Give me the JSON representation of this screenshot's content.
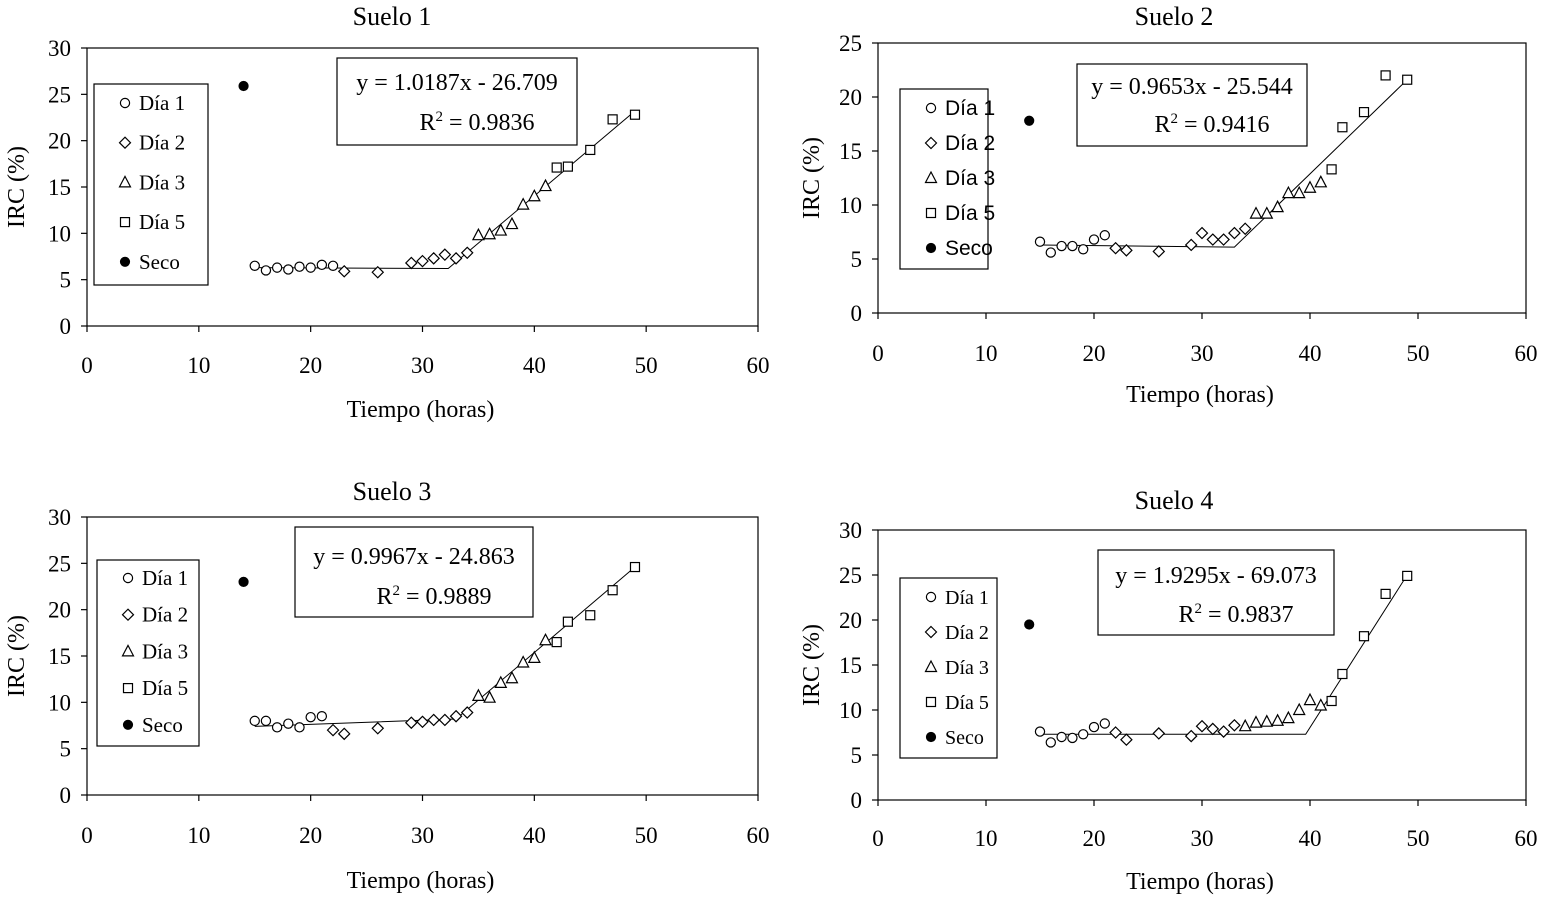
{
  "chart_data": [
    {
      "type": "scatter",
      "title": "Suelo 1",
      "xlabel": "Tiempo (horas)",
      "ylabel": "IRC (%)",
      "xlim": [
        0,
        60
      ],
      "ylim": [
        0,
        30
      ],
      "xticks": [
        "0",
        "10",
        "20",
        "30",
        "40",
        "50",
        "60"
      ],
      "yticks": [
        "0",
        "5",
        "10",
        "15",
        "20",
        "25",
        "30"
      ],
      "equation": "y = 1.0187x - 26.709",
      "r2_label": "R",
      "r2_sup": "2",
      "r2_value": " = 0.9836",
      "legend": [
        "Día 1",
        "Día 2",
        "Día 3",
        "Día 5",
        "Seco"
      ],
      "fit_line": [
        [
          15,
          6.3
        ],
        [
          32.3,
          6.2
        ],
        [
          48.8,
          23.0
        ]
      ],
      "series": [
        {
          "name": "Día 1",
          "marker": "circle",
          "points": [
            [
              15,
              6.5
            ],
            [
              16,
              6.0
            ],
            [
              17,
              6.3
            ],
            [
              18,
              6.1
            ],
            [
              19,
              6.4
            ],
            [
              20,
              6.3
            ],
            [
              21,
              6.6
            ],
            [
              22,
              6.5
            ]
          ]
        },
        {
          "name": "Día 2",
          "marker": "diamond",
          "points": [
            [
              23,
              5.9
            ],
            [
              26,
              5.8
            ],
            [
              29,
              6.8
            ],
            [
              30,
              7.0
            ],
            [
              31,
              7.3
            ],
            [
              32,
              7.7
            ],
            [
              33,
              7.3
            ],
            [
              34,
              7.9
            ]
          ]
        },
        {
          "name": "Día 3",
          "marker": "triangle",
          "points": [
            [
              35,
              9.8
            ],
            [
              36,
              9.9
            ],
            [
              37,
              10.3
            ],
            [
              38,
              11.0
            ],
            [
              39,
              13.1
            ],
            [
              40,
              14.0
            ],
            [
              41,
              15.1
            ]
          ]
        },
        {
          "name": "Día 5",
          "marker": "square",
          "points": [
            [
              42,
              17.1
            ],
            [
              43,
              17.2
            ],
            [
              45,
              19.0
            ],
            [
              47,
              22.3
            ],
            [
              49,
              22.8
            ]
          ]
        },
        {
          "name": "Seco",
          "marker": "dot",
          "points": [
            [
              14,
              25.9
            ]
          ]
        }
      ]
    },
    {
      "type": "scatter",
      "title": "Suelo 2",
      "xlabel": "Tiempo (horas)",
      "ylabel": "IRC (%)",
      "xlim": [
        0,
        60
      ],
      "ylim": [
        0,
        25
      ],
      "xticks": [
        "0",
        "10",
        "20",
        "30",
        "40",
        "50",
        "60"
      ],
      "yticks": [
        "0",
        "5",
        "10",
        "15",
        "20",
        "25"
      ],
      "equation": "y = 0.9653x - 25.544",
      "r2_label": "R",
      "r2_sup": "2",
      "r2_value": " = 0.9416",
      "legend": [
        "Día 1",
        "Día 2",
        "Día 3",
        "Día 5",
        "Seco"
      ],
      "fit_line": [
        [
          15,
          6.3
        ],
        [
          33,
          6.1
        ],
        [
          49,
          21.6
        ]
      ],
      "series": [
        {
          "name": "Día 1",
          "marker": "circle",
          "points": [
            [
              15,
              6.6
            ],
            [
              16,
              5.6
            ],
            [
              17,
              6.2
            ],
            [
              18,
              6.2
            ],
            [
              19,
              5.9
            ],
            [
              20,
              6.8
            ],
            [
              21,
              7.2
            ]
          ]
        },
        {
          "name": "Día 2",
          "marker": "diamond",
          "points": [
            [
              22,
              6.0
            ],
            [
              23,
              5.8
            ],
            [
              26,
              5.7
            ],
            [
              29,
              6.3
            ],
            [
              30,
              7.4
            ],
            [
              31,
              6.8
            ],
            [
              32,
              6.8
            ],
            [
              33,
              7.4
            ],
            [
              34,
              7.8
            ]
          ]
        },
        {
          "name": "Día 3",
          "marker": "triangle",
          "points": [
            [
              35,
              9.2
            ],
            [
              36,
              9.2
            ],
            [
              37,
              9.8
            ],
            [
              38,
              11.1
            ],
            [
              39,
              11.1
            ],
            [
              40,
              11.6
            ],
            [
              41,
              12.1
            ]
          ]
        },
        {
          "name": "Día 5",
          "marker": "square",
          "points": [
            [
              42,
              13.3
            ],
            [
              43,
              17.2
            ],
            [
              45,
              18.6
            ],
            [
              47,
              22.0
            ],
            [
              49,
              21.6
            ]
          ]
        },
        {
          "name": "Seco",
          "marker": "dot",
          "points": [
            [
              14,
              17.8
            ]
          ]
        }
      ]
    },
    {
      "type": "scatter",
      "title": "Suelo 3",
      "xlabel": "Tiempo (horas)",
      "ylabel": "IRC (%)",
      "xlim": [
        0,
        60
      ],
      "ylim": [
        0,
        30
      ],
      "xticks": [
        "0",
        "10",
        "20",
        "30",
        "40",
        "50",
        "60"
      ],
      "yticks": [
        "0",
        "5",
        "10",
        "15",
        "20",
        "25",
        "30"
      ],
      "equation": "y = 0.9967x - 24.863",
      "r2_label": "R",
      "r2_sup": "2",
      "r2_value": " = 0.9889",
      "legend": [
        "Día 1",
        "Día 2",
        "Día 3",
        "Día 5",
        "Seco"
      ],
      "fit_line": [
        [
          15,
          7.4
        ],
        [
          33,
          8.2
        ],
        [
          48.8,
          24.4
        ]
      ],
      "series": [
        {
          "name": "Día 1",
          "marker": "circle",
          "points": [
            [
              15,
              8.0
            ],
            [
              16,
              8.0
            ],
            [
              17,
              7.3
            ],
            [
              18,
              7.7
            ],
            [
              19,
              7.3
            ],
            [
              20,
              8.4
            ],
            [
              21,
              8.5
            ]
          ]
        },
        {
          "name": "Día 2",
          "marker": "diamond",
          "points": [
            [
              22,
              7.0
            ],
            [
              23,
              6.6
            ],
            [
              26,
              7.2
            ],
            [
              29,
              7.8
            ],
            [
              30,
              7.9
            ],
            [
              31,
              8.1
            ],
            [
              32,
              8.1
            ],
            [
              33,
              8.5
            ],
            [
              34,
              8.9
            ]
          ]
        },
        {
          "name": "Día 3",
          "marker": "triangle",
          "points": [
            [
              35,
              10.7
            ],
            [
              36,
              10.5
            ],
            [
              37,
              12.1
            ],
            [
              38,
              12.6
            ],
            [
              39,
              14.3
            ],
            [
              40,
              14.8
            ],
            [
              41,
              16.7
            ]
          ]
        },
        {
          "name": "Día 5",
          "marker": "square",
          "points": [
            [
              42,
              16.5
            ],
            [
              43,
              18.7
            ],
            [
              45,
              19.4
            ],
            [
              47,
              22.1
            ],
            [
              49,
              24.6
            ]
          ]
        },
        {
          "name": "Seco",
          "marker": "dot",
          "points": [
            [
              14,
              23.0
            ]
          ]
        }
      ]
    },
    {
      "type": "scatter",
      "title": "Suelo 4",
      "xlabel": "Tiempo (horas)",
      "ylabel": "IRC (%)",
      "xlim": [
        0,
        60
      ],
      "ylim": [
        0,
        30
      ],
      "xticks": [
        "0",
        "10",
        "20",
        "30",
        "40",
        "50",
        "60"
      ],
      "yticks": [
        "0",
        "5",
        "10",
        "15",
        "20",
        "25",
        "30"
      ],
      "equation": "y = 1.9295x - 69.073",
      "r2_label": "R",
      "r2_sup": "2",
      "r2_value": " = 0.9837",
      "legend": [
        "Día 1",
        "Día 2",
        "Día 3",
        "Día 5",
        "Seco"
      ],
      "fit_line": [
        [
          15,
          7.3
        ],
        [
          39.6,
          7.3
        ],
        [
          49,
          25.0
        ]
      ],
      "series": [
        {
          "name": "Día 1",
          "marker": "circle",
          "points": [
            [
              15,
              7.6
            ],
            [
              16,
              6.4
            ],
            [
              17,
              7.0
            ],
            [
              18,
              6.9
            ],
            [
              19,
              7.3
            ],
            [
              20,
              8.1
            ],
            [
              21,
              8.5
            ]
          ]
        },
        {
          "name": "Día 2",
          "marker": "diamond",
          "points": [
            [
              22,
              7.5
            ],
            [
              23,
              6.7
            ],
            [
              26,
              7.4
            ],
            [
              29,
              7.1
            ],
            [
              30,
              8.2
            ],
            [
              31,
              7.9
            ],
            [
              32,
              7.6
            ],
            [
              33,
              8.3
            ]
          ]
        },
        {
          "name": "Día 3",
          "marker": "triangle",
          "points": [
            [
              34,
              8.2
            ],
            [
              35,
              8.6
            ],
            [
              36,
              8.7
            ],
            [
              37,
              8.8
            ],
            [
              38,
              9.1
            ],
            [
              39,
              10.0
            ],
            [
              40,
              11.1
            ],
            [
              41,
              10.5
            ]
          ]
        },
        {
          "name": "Día 5",
          "marker": "square",
          "points": [
            [
              42,
              11.0
            ],
            [
              43,
              14.0
            ],
            [
              45,
              18.2
            ],
            [
              47,
              22.9
            ],
            [
              49,
              24.9
            ]
          ]
        },
        {
          "name": "Seco",
          "marker": "dot",
          "points": [
            [
              14,
              19.5
            ]
          ]
        }
      ]
    }
  ]
}
